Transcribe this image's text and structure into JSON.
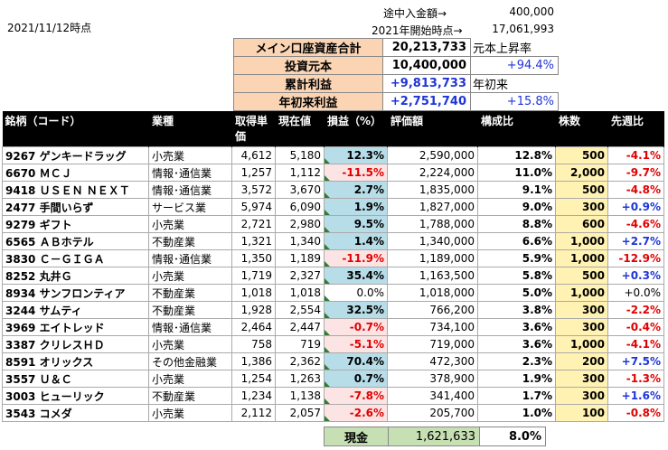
{
  "date": "2021/11/12時点",
  "top": {
    "deposit_label": "途中入金額→",
    "deposit_value": "400,000",
    "start_label": "2021年開始時点→",
    "start_value": "17,061,993"
  },
  "summary": [
    {
      "label": "メイン口座資産合計",
      "value": "20,213,733",
      "extra": "元本上昇率",
      "value_blue": false,
      "extra_blue": false
    },
    {
      "label": "投資元本",
      "value": "10,400,000",
      "extra": "+94.4%",
      "value_blue": false,
      "extra_blue": true
    },
    {
      "label": "累計利益",
      "value": "+9,813,733",
      "extra": "年初来",
      "value_blue": true,
      "extra_blue": false
    },
    {
      "label": "年初来利益",
      "value": "+2,751,740",
      "extra": "+15.8%",
      "value_blue": true,
      "extra_blue": true
    }
  ],
  "headers": {
    "name": "銘柄（コード）",
    "sector": "業種",
    "cost": "取得単価",
    "price": "現在値",
    "pl": "損益（%）",
    "value": "評価額",
    "ratio": "構成比",
    "qty": "株数",
    "week": "先週比"
  },
  "rows": [
    {
      "name": "9267 ゲンキードラッグ",
      "sector": "小売業",
      "cost": "4,612",
      "price": "5,180",
      "pl": "12.3%",
      "value": "2,590,000",
      "ratio": "12.8%",
      "qty": "500",
      "week": "-4.1%"
    },
    {
      "name": "6670 ＭＣＪ",
      "sector": "情報･通信業",
      "cost": "1,257",
      "price": "1,112",
      "pl": "-11.5%",
      "value": "2,224,000",
      "ratio": "11.0%",
      "qty": "2,000",
      "week": "-9.7%"
    },
    {
      "name": "9418 ＵＳＥＮ ＮＥＸＴ",
      "sector": "情報･通信業",
      "cost": "3,572",
      "price": "3,670",
      "pl": "2.7%",
      "value": "1,835,000",
      "ratio": "9.1%",
      "qty": "500",
      "week": "-4.8%"
    },
    {
      "name": "2477 手間いらず",
      "sector": "サービス業",
      "cost": "5,974",
      "price": "6,090",
      "pl": "1.9%",
      "value": "1,827,000",
      "ratio": "9.0%",
      "qty": "300",
      "week": "+0.9%"
    },
    {
      "name": "9279 ギフト",
      "sector": "小売業",
      "cost": "2,721",
      "price": "2,980",
      "pl": "9.5%",
      "value": "1,788,000",
      "ratio": "8.8%",
      "qty": "600",
      "week": "-4.6%"
    },
    {
      "name": "6565 ＡＢホテル",
      "sector": "不動産業",
      "cost": "1,321",
      "price": "1,340",
      "pl": "1.4%",
      "value": "1,340,000",
      "ratio": "6.6%",
      "qty": "1,000",
      "week": "+2.7%"
    },
    {
      "name": "3830 Ｃ－ＧＩＧＡ",
      "sector": "情報･通信業",
      "cost": "1,350",
      "price": "1,189",
      "pl": "-11.9%",
      "value": "1,189,000",
      "ratio": "5.9%",
      "qty": "1,000",
      "week": "-12.9%"
    },
    {
      "name": "8252 丸井Ｇ",
      "sector": "小売業",
      "cost": "1,719",
      "price": "2,327",
      "pl": "35.4%",
      "value": "1,163,500",
      "ratio": "5.8%",
      "qty": "500",
      "week": "+0.3%"
    },
    {
      "name": "8934 サンフロンティア",
      "sector": "不動産業",
      "cost": "1,018",
      "price": "1,018",
      "pl": "0.0%",
      "value": "1,018,000",
      "ratio": "5.0%",
      "qty": "1,000",
      "week": "+0.0%"
    },
    {
      "name": "3244 サムティ",
      "sector": "不動産業",
      "cost": "1,928",
      "price": "2,554",
      "pl": "32.5%",
      "value": "766,200",
      "ratio": "3.8%",
      "qty": "300",
      "week": "-2.2%"
    },
    {
      "name": "3969 エイトレッド",
      "sector": "情報･通信業",
      "cost": "2,464",
      "price": "2,447",
      "pl": "-0.7%",
      "value": "734,100",
      "ratio": "3.6%",
      "qty": "300",
      "week": "-0.4%"
    },
    {
      "name": "3387 クリレスＨＤ",
      "sector": "小売業",
      "cost": "758",
      "price": "719",
      "pl": "-5.1%",
      "value": "719,000",
      "ratio": "3.6%",
      "qty": "1,000",
      "week": "-4.1%"
    },
    {
      "name": "8591 オリックス",
      "sector": "その他金融業",
      "cost": "1,386",
      "price": "2,362",
      "pl": "70.4%",
      "value": "472,300",
      "ratio": "2.3%",
      "qty": "200",
      "week": "+7.5%"
    },
    {
      "name": "3557 Ｕ＆Ｃ",
      "sector": "小売業",
      "cost": "1,254",
      "price": "1,263",
      "pl": "0.7%",
      "value": "378,900",
      "ratio": "1.9%",
      "qty": "300",
      "week": "-1.3%"
    },
    {
      "name": "3003 ヒューリック",
      "sector": "不動産業",
      "cost": "1,234",
      "price": "1,138",
      "pl": "-7.8%",
      "value": "341,400",
      "ratio": "1.7%",
      "qty": "300",
      "week": "+1.6%"
    },
    {
      "name": "3543 コメダ",
      "sector": "小売業",
      "cost": "2,112",
      "price": "2,057",
      "pl": "-2.6%",
      "value": "205,700",
      "ratio": "1.0%",
      "qty": "100",
      "week": "-0.8%"
    }
  ],
  "cash": {
    "label": "現金",
    "value": "1,621,633",
    "ratio": "8.0%"
  },
  "colors": {
    "header_bg": "#000000",
    "summary_label_bg": "#fbd4b4",
    "plus_blue": "#1f35d6",
    "minus_red": "#e00000",
    "pl_pos_bg": "#b7dde8",
    "pl_neg_bg": "#fce4e4",
    "qty_bg": "#fff2b3",
    "cash_bg": "#c6e0b4"
  }
}
